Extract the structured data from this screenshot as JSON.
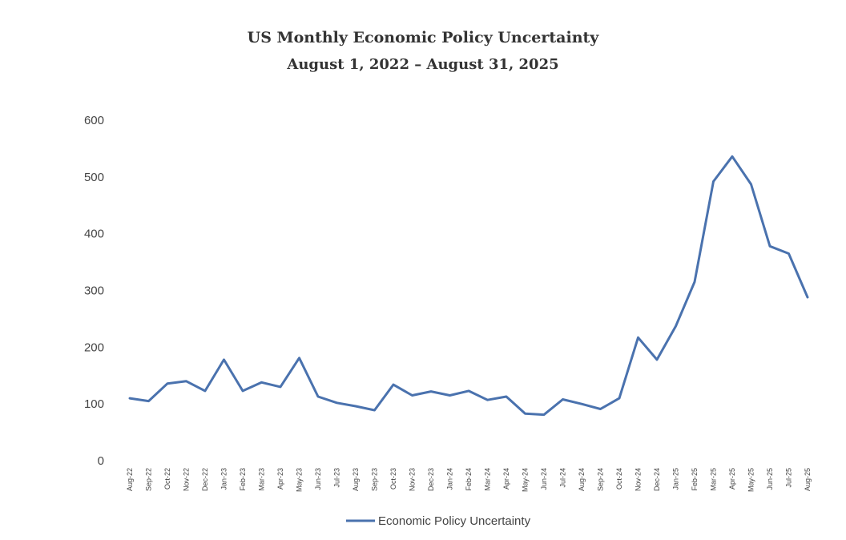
{
  "chart_data": {
    "type": "line",
    "title": "US Monthly Economic Policy Uncertainty",
    "subtitle": "August 1, 2022 – August 31, 2025",
    "xlabel": "",
    "ylabel": "",
    "ylim": [
      0,
      600
    ],
    "yticks": [
      "0",
      "100",
      "200",
      "300",
      "400",
      "500",
      "600"
    ],
    "grid": false,
    "legend_position": "bottom",
    "categories": [
      "Aug-22",
      "Sep-22",
      "Oct-22",
      "Nov-22",
      "Dec-22",
      "Jan-23",
      "Feb-23",
      "Mar-23",
      "Apr-23",
      "May-23",
      "Jun-23",
      "Jul-23",
      "Aug-23",
      "Sep-23",
      "Oct-23",
      "Nov-23",
      "Dec-23",
      "Jan-24",
      "Feb-24",
      "Mar-24",
      "Apr-24",
      "May-24",
      "Jun-24",
      "Jul-24",
      "Aug-24",
      "Sep-24",
      "Oct-24",
      "Nov-24",
      "Dec-24",
      "Jan-25",
      "Feb-25",
      "Mar-25",
      "Apr-25",
      "May-25",
      "Jun-25",
      "Jul-25",
      "Aug-25"
    ],
    "series": [
      {
        "name": "Economic Policy Uncertainty",
        "color": "#4a72ae",
        "values": [
          110,
          105,
          136,
          140,
          123,
          178,
          123,
          138,
          130,
          181,
          113,
          102,
          96,
          89,
          134,
          115,
          122,
          115,
          123,
          107,
          113,
          83,
          81,
          108,
          100,
          91,
          110,
          217,
          178,
          237,
          315,
          492,
          536,
          487,
          378,
          365,
          288
        ]
      }
    ]
  }
}
